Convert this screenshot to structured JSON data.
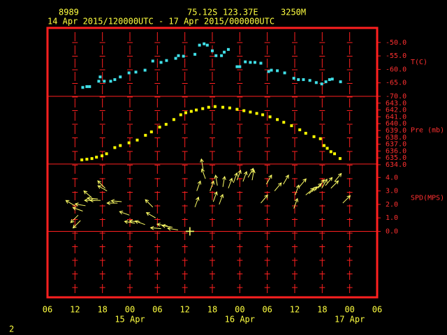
{
  "header": {
    "station": "8989",
    "latitude": "75.12S",
    "longitude": "123.37E",
    "elevation": "3250M",
    "period": "14 Apr 2015/120000UTC - 17 Apr 2015/000000UTC",
    "page": "2"
  },
  "chart_data": [
    {
      "type": "scatter",
      "ylabel": "T(C)",
      "x": [
        13.7,
        14.6,
        15.2,
        17.2,
        17.5,
        18.4,
        19.8,
        20.7,
        21.9,
        23.8,
        25.3,
        27.3,
        29.0,
        30.8,
        32.0,
        34.0,
        34.6,
        35.7,
        38.2,
        39.2,
        40.2,
        40.9,
        42.0,
        42.8,
        44.0,
        44.6,
        45.5,
        47.4,
        48.0,
        49.2,
        50.3,
        51.3,
        52.6,
        54.3,
        54.9,
        56.2,
        57.8,
        59.8,
        60.8,
        61.9,
        63.3,
        64.7,
        65.9,
        66.8,
        67.6,
        68.2,
        70.0
      ],
      "series": [
        {
          "color": "#40e0e8",
          "values": [
            -66.7,
            -66.4,
            -66.4,
            -64.4,
            -62.8,
            -64.4,
            -64.4,
            -63.8,
            -62.8,
            -61.3,
            -61.0,
            -60.3,
            -56.9,
            -57.4,
            -56.7,
            -55.9,
            -54.9,
            -55.1,
            -54.4,
            -51.0,
            -50.5,
            -51.0,
            -53.1,
            -54.9,
            -54.9,
            -53.6,
            -52.6,
            -59.0,
            -59.0,
            -57.2,
            -57.4,
            -57.4,
            -57.7,
            -60.8,
            -60.3,
            -60.5,
            -61.3,
            -63.3,
            -63.8,
            -63.8,
            -64.1,
            -64.9,
            -65.4,
            -64.6,
            -63.8,
            -63.6,
            -64.6
          ]
        }
      ],
      "ylim": [
        -70,
        -44.6
      ],
      "yticks": [
        {
          "value": -50,
          "label": "-50.0"
        },
        {
          "value": -55,
          "label": "-55.0"
        },
        {
          "value": -60,
          "label": "-60.0"
        },
        {
          "value": -65,
          "label": "-65.0"
        },
        {
          "value": -70,
          "label": "-70.0"
        }
      ]
    },
    {
      "type": "scatter",
      "ylabel": "Pre (mb)",
      "x": [
        13.5,
        14.6,
        15.7,
        16.7,
        17.9,
        18.9,
        20.7,
        21.9,
        23.8,
        25.6,
        27.4,
        28.7,
        30.5,
        31.9,
        33.6,
        35.1,
        36.2,
        37.4,
        38.5,
        39.9,
        41.2,
        42.6,
        44.3,
        45.8,
        47.4,
        48.9,
        50.3,
        51.7,
        53.0,
        54.6,
        56.2,
        57.6,
        59.3,
        61.1,
        62.4,
        64.2,
        65.6,
        66.4,
        67.1,
        67.9,
        68.7,
        69.9
      ],
      "series": [
        {
          "color": "#ffff00",
          "values": [
            634.7,
            634.8,
            634.9,
            635.1,
            635.3,
            635.6,
            636.5,
            636.8,
            637.2,
            637.6,
            638.3,
            638.8,
            639.5,
            639.9,
            640.6,
            641.3,
            641.6,
            641.8,
            642.0,
            642.2,
            642.4,
            642.5,
            642.4,
            642.3,
            642.1,
            641.9,
            641.7,
            641.5,
            641.3,
            641.0,
            640.6,
            640.2,
            639.7,
            639.1,
            638.6,
            638.1,
            637.8,
            636.8,
            636.4,
            635.9,
            635.6,
            634.9
          ]
        }
      ],
      "ylim": [
        634.1,
        644.0
      ],
      "yticks": [
        {
          "value": 643,
          "label": "643.0"
        },
        {
          "value": 642,
          "label": "642.0"
        },
        {
          "value": 641,
          "label": "641.0"
        },
        {
          "value": 640,
          "label": "640.0"
        },
        {
          "value": 639,
          "label": "639.0"
        },
        {
          "value": 638,
          "label": "638.0"
        },
        {
          "value": 637,
          "label": "637.0"
        },
        {
          "value": 636,
          "label": "636.0"
        },
        {
          "value": 635,
          "label": "635.0"
        },
        {
          "value": 634,
          "label": "634.0"
        }
      ]
    },
    {
      "type": "vector",
      "ylabel": "SPD(MPS)",
      "color": "#ffff66",
      "x": [
        12.0,
        12.7,
        13.2,
        13.7,
        14.3,
        15.7,
        16.4,
        17.0,
        17.6,
        18.6,
        19.0,
        21.3,
        22.2,
        23.9,
        25.1,
        26.2,
        27.3,
        29.0,
        29.6,
        30.8,
        32.2,
        33.3,
        34.5,
        37.1,
        38.2,
        38.6,
        40.0,
        40.5,
        41.5,
        42.2,
        43.1,
        43.5,
        44.3,
        45.5,
        46.6,
        47.4,
        48.7,
        49.8,
        50.7,
        52.6,
        53.8,
        55.6,
        57.5,
        59.8,
        60.1,
        61.0,
        62.4,
        63.1,
        64.2,
        65.1,
        65.9,
        66.7,
        67.9,
        68.7,
        70.5
      ],
      "values": [
        1.9,
        1.2,
        0.8,
        1.5,
        1.9,
        2.5,
        2.3,
        2.4,
        2.3,
        3.2,
        3.0,
        2.1,
        2.2,
        1.2,
        0.6,
        0.7,
        0.5,
        1.8,
        1.0,
        0.2,
        0.4,
        0.3,
        0.1,
        0.0,
        1.8,
        3.0,
        4.6,
        3.9,
        3.0,
        2.2,
        3.4,
        2.0,
        3.3,
        3.2,
        3.6,
        3.8,
        3.7,
        4.0,
        3.8,
        2.1,
        3.5,
        3.0,
        3.5,
        1.7,
        2.7,
        3.3,
        2.7,
        2.8,
        3.0,
        3.2,
        3.2,
        3.4,
        3.2,
        3.7,
        2.1
      ],
      "directions": [
        120,
        45,
        45,
        110,
        100,
        130,
        90,
        95,
        90,
        135,
        120,
        90,
        95,
        110,
        100,
        95,
        110,
        135,
        120,
        95,
        100,
        100,
        100,
        0,
        200,
        200,
        170,
        160,
        200,
        200,
        170,
        200,
        190,
        200,
        200,
        200,
        200,
        210,
        190,
        220,
        210,
        220,
        210,
        200,
        200,
        220,
        230,
        230,
        225,
        215,
        210,
        220,
        225,
        220,
        225
      ],
      "ylim": [
        -4.9,
        5.0
      ],
      "yticks": [
        {
          "value": 4,
          "label": "4.0"
        },
        {
          "value": 3,
          "label": "3.0"
        },
        {
          "value": 2,
          "label": "2.0"
        },
        {
          "value": 1,
          "label": "1.0"
        },
        {
          "value": 0,
          "label": "0.0"
        }
      ],
      "xlim": [
        6,
        78
      ],
      "xticks": [
        {
          "value": 6,
          "label": "06"
        },
        {
          "value": 12,
          "label": "12"
        },
        {
          "value": 18,
          "label": "18"
        },
        {
          "value": 24,
          "label": "00"
        },
        {
          "value": 30,
          "label": "06"
        },
        {
          "value": 36,
          "label": "12"
        },
        {
          "value": 42,
          "label": "18"
        },
        {
          "value": 48,
          "label": "00"
        },
        {
          "value": 54,
          "label": "06"
        },
        {
          "value": 60,
          "label": "12"
        },
        {
          "value": 66,
          "label": "18"
        },
        {
          "value": 72,
          "label": "00"
        },
        {
          "value": 78,
          "label": "06"
        }
      ],
      "day_labels": [
        {
          "value": 24,
          "label": "15 Apr"
        },
        {
          "value": 48,
          "label": "16 Apr"
        },
        {
          "value": 72,
          "label": "17 Apr"
        }
      ]
    }
  ]
}
